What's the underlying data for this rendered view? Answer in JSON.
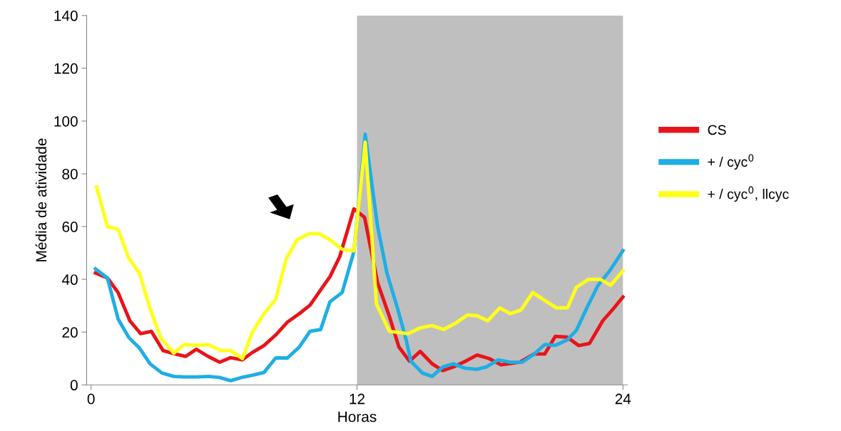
{
  "chart_data": {
    "type": "line",
    "xlabel": "Horas",
    "ylabel": "Média de atividade",
    "xlim": [
      -0.2,
      24.2
    ],
    "xticks": [
      0,
      12,
      24
    ],
    "ylim": [
      0,
      140
    ],
    "yticks": [
      0,
      20,
      40,
      60,
      80,
      100,
      120,
      140
    ],
    "grid": false,
    "legend": "right",
    "marker": "none",
    "line_style": "solid",
    "bands": [
      {
        "axis": "x",
        "from": 12,
        "to": 24,
        "color": "#bfbfbf"
      }
    ],
    "series": [
      {
        "name": "CS",
        "color": "#e8141a",
        "x": [
          0.2,
          0.74,
          1.22,
          1.75,
          2.24,
          2.72,
          3.25,
          3.79,
          4.27,
          4.75,
          5.28,
          5.8,
          6.3,
          6.83,
          7.26,
          7.8,
          8.33,
          8.86,
          9.4,
          9.88,
          10.36,
          10.78,
          11.22,
          11.86,
          12.34,
          12.93,
          13.46,
          13.89,
          14.37,
          14.85,
          15.39,
          15.87,
          16.4,
          16.9,
          17.42,
          17.96,
          18.5,
          19.35,
          19.99,
          20.47,
          20.95,
          21.48,
          22.0,
          22.49,
          23.09,
          23.57,
          24.0
        ],
        "values": [
          42.4,
          40.5,
          35,
          24.3,
          19.4,
          20.3,
          13,
          11.7,
          10.8,
          13.5,
          10.8,
          8.6,
          10.3,
          9.5,
          12.2,
          14.9,
          18.9,
          23.8,
          27,
          30.2,
          36,
          41,
          48.6,
          66.7,
          63.5,
          38.7,
          26,
          14.4,
          9,
          12.7,
          8,
          5.4,
          7,
          9,
          11.3,
          10,
          7.6,
          8.6,
          11.7,
          11.7,
          18.4,
          18.1,
          14.9,
          15.7,
          24.3,
          28.9,
          33.3
        ]
      },
      {
        "name": "+ / cyc$^{0}$",
        "color": "#1eaee5",
        "x": [
          0.2,
          0.74,
          1.22,
          1.7,
          2.18,
          2.66,
          3.2,
          3.73,
          4.25,
          4.75,
          5.3,
          5.8,
          6.3,
          6.83,
          7.26,
          7.8,
          8.33,
          8.86,
          9.4,
          9.88,
          10.36,
          10.78,
          11.33,
          11.86,
          12.37,
          12.72,
          12.93,
          13.35,
          13.83,
          14.22,
          14.43,
          14.95,
          15.39,
          15.87,
          16.35,
          16.88,
          17.4,
          17.83,
          18.38,
          18.9,
          19.45,
          20.0,
          20.47,
          20.95,
          21.48,
          21.9,
          22.4,
          22.88,
          23.4,
          24.0
        ],
        "values": [
          44,
          40.5,
          25,
          18,
          14,
          8,
          4.5,
          3.2,
          3,
          3,
          3.2,
          2.8,
          1.6,
          2.9,
          3.6,
          4.7,
          10.2,
          10.2,
          14.4,
          20.3,
          21,
          31.5,
          35,
          50.5,
          95,
          73,
          60,
          42.4,
          29,
          17,
          9,
          4.5,
          3.2,
          6.8,
          8,
          6.3,
          5.9,
          6.8,
          9.5,
          8.6,
          8.6,
          11.7,
          15.3,
          15,
          17,
          20.7,
          29.7,
          37.8,
          43.2,
          50.9
        ]
      },
      {
        "name": "+ / cyc$^{0}$, llcyc",
        "color": "#ffff1a",
        "x": [
          0.25,
          0.74,
          1.22,
          1.7,
          2.18,
          2.66,
          3.14,
          3.73,
          4.2,
          4.75,
          5.28,
          5.87,
          6.3,
          6.83,
          7.26,
          7.8,
          8.33,
          8.81,
          9.3,
          9.82,
          10.3,
          10.78,
          11.33,
          11.86,
          12.37,
          12.88,
          13.46,
          14.31,
          14.85,
          15.39,
          15.9,
          16.45,
          16.99,
          17.42,
          17.9,
          18.44,
          18.92,
          19.4,
          19.93,
          20.47,
          21.0,
          21.5,
          21.9,
          22.45,
          22.97,
          23.45,
          24.0
        ],
        "values": [
          75,
          60,
          59,
          48,
          42.4,
          29,
          18,
          12,
          15.3,
          15,
          15.3,
          13,
          13,
          10,
          19.7,
          27,
          32.4,
          47.8,
          55,
          57.3,
          57.3,
          55,
          51.4,
          50.8,
          92,
          30.6,
          20.3,
          19.4,
          21.6,
          22.5,
          21,
          23.4,
          26.5,
          26.2,
          24.3,
          29.2,
          27,
          28.4,
          35,
          32,
          29.2,
          29.2,
          37,
          40,
          40,
          37.8,
          43.2
        ]
      }
    ]
  }
}
